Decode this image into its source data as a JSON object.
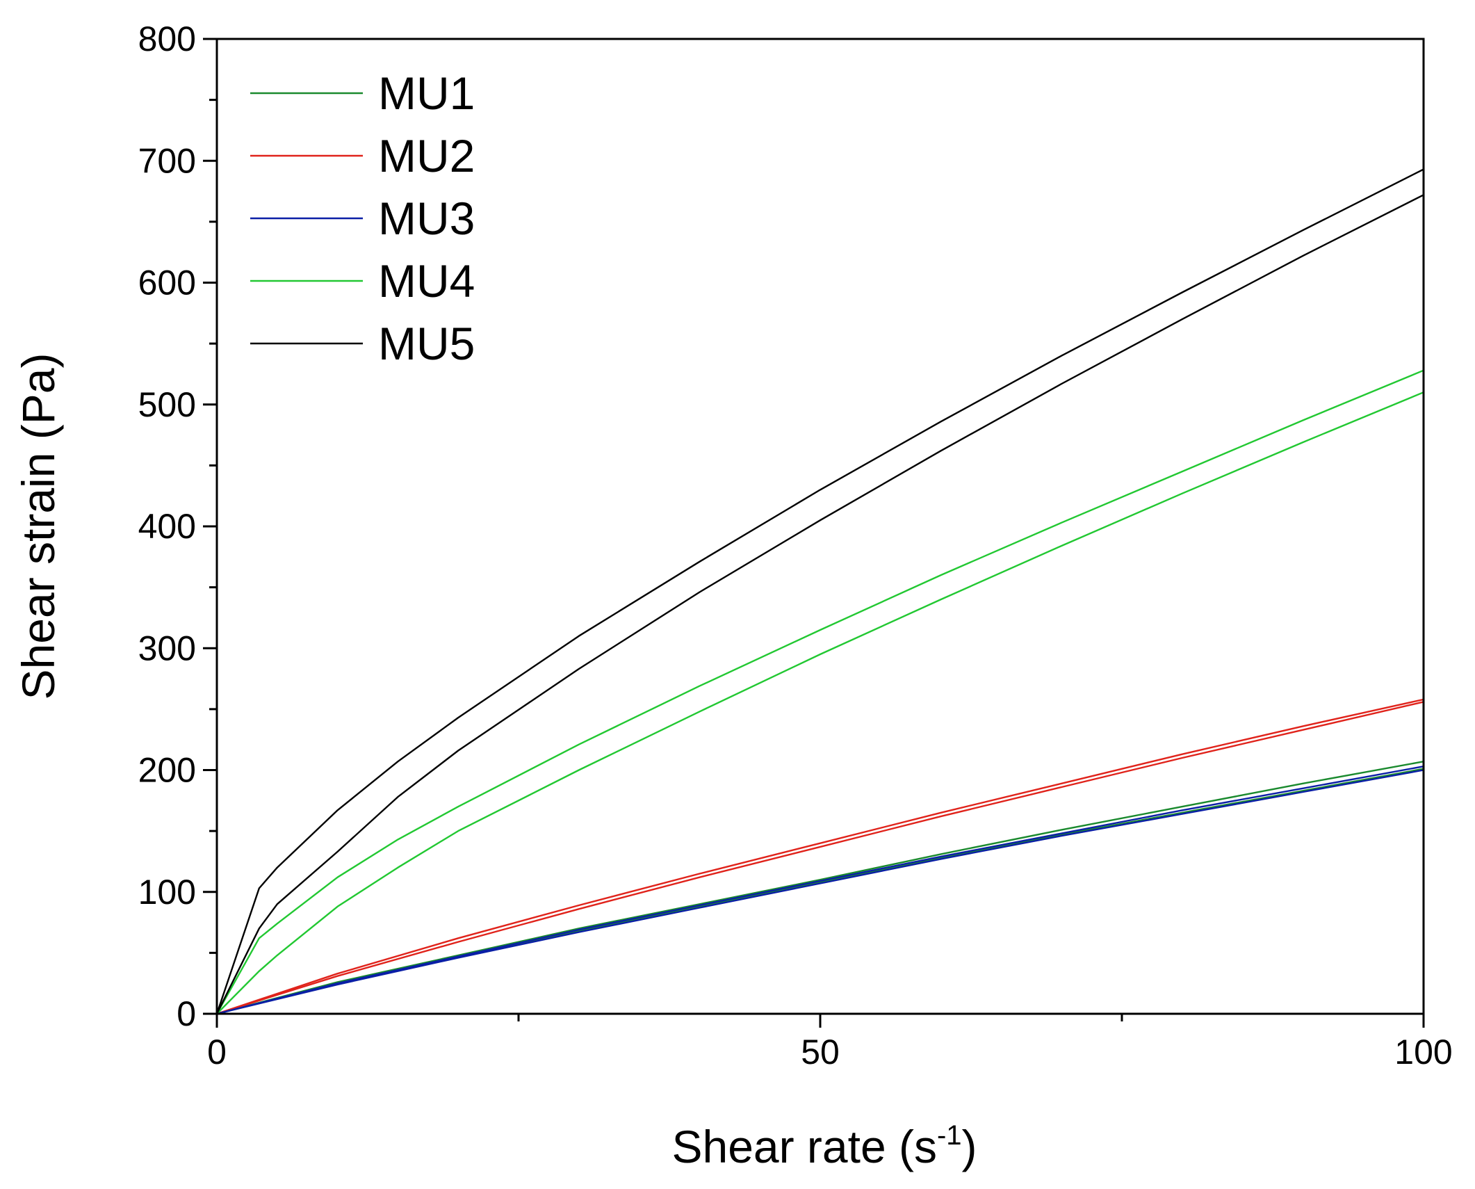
{
  "chart_data": {
    "type": "line",
    "title": "",
    "xlabel": "Shear rate (s",
    "xlabel_sup": "-1",
    "xlabel_close": ")",
    "ylabel": "Shear strain (Pa)",
    "xlim": [
      0,
      100
    ],
    "ylim": [
      0,
      800
    ],
    "x_major_ticks": [
      0,
      50,
      100
    ],
    "x_minor_ticks": [
      25,
      75
    ],
    "y_major_ticks": [
      0,
      100,
      200,
      300,
      400,
      500,
      600,
      700,
      800
    ],
    "grid": false,
    "legend_position": "top-left",
    "series": [
      {
        "name": "MU1",
        "color": "#1a8a2e",
        "curves": [
          {
            "x": [
              0,
              10,
              20,
              30,
              40,
              50,
              60,
              70,
              80,
              90,
              100
            ],
            "y": [
              0,
              25,
              47,
              68,
              88,
              108,
              128,
              147,
              165,
              183,
              201
            ]
          },
          {
            "x": [
              0,
              10,
              20,
              30,
              40,
              50,
              60,
              70,
              80,
              90,
              100
            ],
            "y": [
              0,
              26,
              48,
              70,
              90,
              110,
              131,
              151,
              170,
              189,
              207
            ]
          }
        ]
      },
      {
        "name": "MU2",
        "color": "#e0231b",
        "curves": [
          {
            "x": [
              0,
              10,
              20,
              30,
              40,
              50,
              60,
              70,
              80,
              90,
              100
            ],
            "y": [
              0,
              31,
              59,
              86,
              112,
              137,
              162,
              186,
              210,
              233,
              256
            ]
          },
          {
            "x": [
              0,
              10,
              20,
              30,
              40,
              50,
              60,
              70,
              80,
              90,
              100
            ],
            "y": [
              0,
              33,
              62,
              89,
              115,
              140,
              165,
              189,
              213,
              236,
              258
            ]
          }
        ]
      },
      {
        "name": "MU3",
        "color": "#0a1fa6",
        "curves": [
          {
            "x": [
              0,
              10,
              20,
              30,
              40,
              50,
              60,
              70,
              80,
              90,
              100
            ],
            "y": [
              0,
              24,
              46,
              67,
              87,
              107,
              127,
              146,
              164,
              182,
              200
            ]
          },
          {
            "x": [
              0,
              10,
              20,
              30,
              40,
              50,
              60,
              70,
              80,
              90,
              100
            ],
            "y": [
              0,
              25,
              47,
              69,
              89,
              109,
              129,
              148,
              167,
              185,
              203
            ]
          }
        ]
      },
      {
        "name": "MU4",
        "color": "#22c832",
        "curves": [
          {
            "x": [
              0,
              3.5,
              5,
              10,
              15,
              20,
              30,
              40,
              50,
              60,
              70,
              80,
              90,
              100
            ],
            "y": [
              0,
              62,
              74,
              112,
              143,
              170,
              221,
              269,
              315,
              360,
              403,
              445,
              487,
              528
            ]
          },
          {
            "x": [
              0,
              3.5,
              5,
              10,
              15,
              20,
              30,
              40,
              50,
              60,
              70,
              80,
              90,
              100
            ],
            "y": [
              0,
              35,
              48,
              88,
              120,
              150,
              200,
              248,
              295,
              340,
              384,
              427,
              469,
              510
            ]
          }
        ]
      },
      {
        "name": "MU5",
        "color": "#000000",
        "curves": [
          {
            "x": [
              0,
              3.5,
              5,
              10,
              15,
              20,
              30,
              40,
              50,
              60,
              70,
              80,
              90,
              100
            ],
            "y": [
              0,
              103,
              120,
              167,
              207,
              243,
              310,
              371,
              430,
              486,
              540,
              592,
              643,
              693
            ]
          },
          {
            "x": [
              0,
              3.5,
              5,
              10,
              15,
              20,
              30,
              40,
              50,
              60,
              70,
              80,
              90,
              100
            ],
            "y": [
              0,
              70,
              90,
              133,
              178,
              216,
              283,
              346,
              405,
              462,
              517,
              570,
              622,
              672
            ]
          }
        ]
      }
    ]
  }
}
